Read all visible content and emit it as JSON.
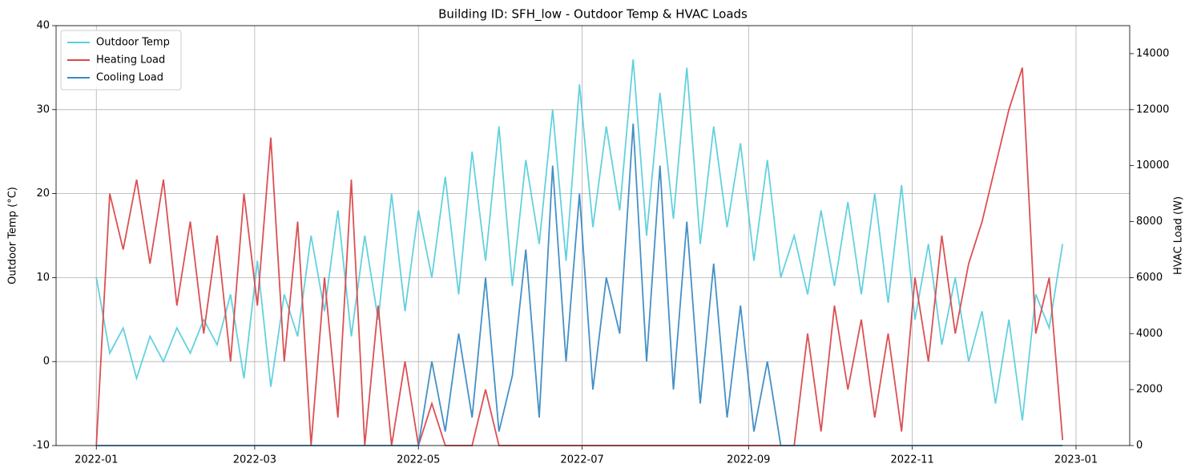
{
  "chart_data": {
    "type": "line",
    "title": "Building ID: SFH_low - Outdoor Temp & HVAC Loads",
    "y_label": "Outdoor Temp (°C)",
    "y2_label": "HVAC Load (W)",
    "x": [
      0,
      5,
      10,
      15,
      20,
      25,
      30,
      35,
      40,
      45,
      50,
      55,
      60,
      65,
      70,
      75,
      80,
      85,
      90,
      95,
      100,
      105,
      110,
      115,
      120,
      125,
      130,
      135,
      140,
      145,
      150,
      155,
      160,
      165,
      170,
      175,
      180,
      185,
      190,
      195,
      200,
      205,
      210,
      215,
      220,
      225,
      230,
      235,
      240,
      245,
      250,
      255,
      260,
      265,
      270,
      275,
      280,
      285,
      290,
      295,
      300,
      305,
      310,
      315,
      320,
      325,
      330,
      335,
      340,
      345,
      350,
      355,
      360
    ],
    "series": [
      {
        "name": "Outdoor Temp",
        "color": "#5bcfdc",
        "values": [
          10,
          1,
          4,
          -2,
          3,
          0,
          4,
          1,
          5,
          2,
          8,
          -2,
          12,
          -3,
          8,
          3,
          15,
          6,
          18,
          3,
          15,
          5,
          20,
          6,
          18,
          10,
          22,
          8,
          25,
          12,
          28,
          9,
          24,
          14,
          30,
          12,
          33,
          16,
          28,
          18,
          36,
          15,
          32,
          17,
          35,
          14,
          28,
          16,
          26,
          12,
          24,
          10,
          15,
          8,
          18,
          9,
          19,
          8,
          20,
          7,
          21,
          5,
          14,
          2,
          10,
          0,
          6,
          -5,
          5,
          -7,
          8,
          4,
          14
        ]
      },
      {
        "name": "Heating Load",
        "color": "#d9474a",
        "axis": "y2",
        "values": [
          0,
          9000,
          7000,
          9500,
          6500,
          9500,
          5000,
          8000,
          4000,
          7500,
          3000,
          9000,
          5000,
          11000,
          3000,
          8000,
          0,
          6000,
          1000,
          9500,
          0,
          5000,
          0,
          3000,
          0,
          1500,
          0,
          0,
          0,
          2000,
          0,
          0,
          0,
          0,
          0,
          0,
          0,
          0,
          0,
          0,
          0,
          0,
          0,
          0,
          0,
          0,
          0,
          0,
          0,
          0,
          0,
          0,
          0,
          4000,
          500,
          5000,
          2000,
          4500,
          1000,
          4000,
          500,
          6000,
          3000,
          7500,
          4000,
          6500,
          8000,
          10000,
          12000,
          13500,
          4000,
          6000,
          200
        ]
      },
      {
        "name": "Cooling Load",
        "color": "#3a8ac4",
        "axis": "y2",
        "values": [
          0,
          0,
          0,
          0,
          0,
          0,
          0,
          0,
          0,
          0,
          0,
          0,
          0,
          0,
          0,
          0,
          0,
          0,
          0,
          0,
          0,
          0,
          0,
          0,
          0,
          3000,
          500,
          4000,
          1000,
          6000,
          500,
          2500,
          7000,
          1000,
          10000,
          3000,
          9000,
          2000,
          6000,
          4000,
          11500,
          3000,
          10000,
          2000,
          8000,
          1500,
          6500,
          1000,
          5000,
          500,
          3000,
          0,
          0,
          0,
          0,
          0,
          0,
          0,
          0,
          0,
          0,
          0,
          0,
          0,
          0,
          0,
          0,
          0,
          0,
          0,
          0,
          0,
          0
        ]
      }
    ],
    "xlim": [
      -15,
      385
    ],
    "xticks": [
      {
        "value": 0,
        "label": "2022-01"
      },
      {
        "value": 59,
        "label": "2022-03"
      },
      {
        "value": 120,
        "label": "2022-05"
      },
      {
        "value": 181,
        "label": "2022-07"
      },
      {
        "value": 243,
        "label": "2022-09"
      },
      {
        "value": 304,
        "label": "2022-11"
      },
      {
        "value": 365,
        "label": "2023-01"
      }
    ],
    "ylim": [
      -10,
      40
    ],
    "yticks": [
      -10,
      0,
      10,
      20,
      30,
      40
    ],
    "y2lim": [
      0,
      15000
    ],
    "y2ticks": [
      0,
      2000,
      4000,
      6000,
      8000,
      10000,
      12000,
      14000
    ],
    "grid": true,
    "legend": "upper left"
  }
}
